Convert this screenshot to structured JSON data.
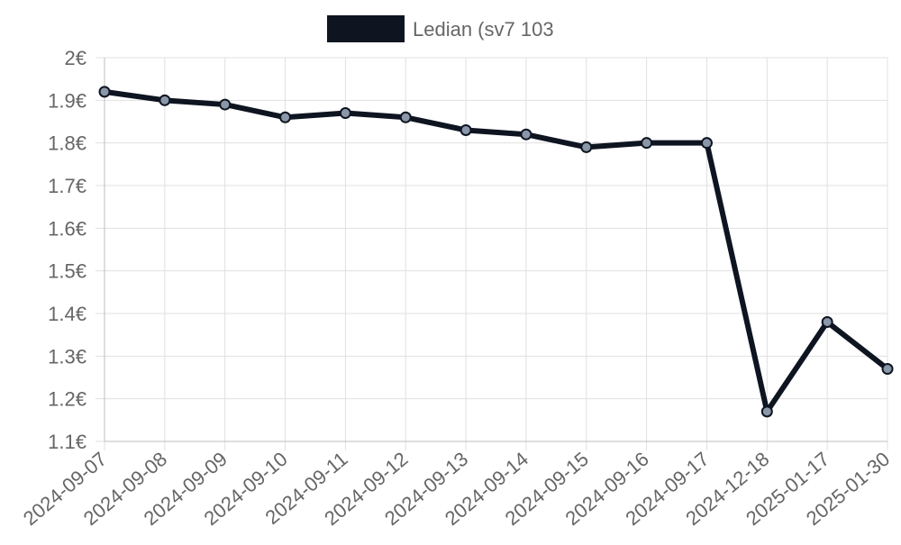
{
  "colors": {
    "series_line": "#0e1521",
    "point_fill": "#8a97a8",
    "legend_swatch": "#0e1521",
    "text": "#666666"
  },
  "chart_data": {
    "type": "line",
    "title": "",
    "xlabel": "",
    "ylabel": "",
    "categories": [
      "2024-09-07",
      "2024-09-08",
      "2024-09-09",
      "2024-09-10",
      "2024-09-11",
      "2024-09-12",
      "2024-09-13",
      "2024-09-14",
      "2024-09-15",
      "2024-09-16",
      "2024-09-17",
      "2024-12-18",
      "2025-01-17",
      "2025-01-30"
    ],
    "series": [
      {
        "name": "Ledian (sv7 103",
        "values": [
          1.92,
          1.9,
          1.89,
          1.86,
          1.87,
          1.86,
          1.83,
          1.82,
          1.79,
          1.8,
          1.8,
          1.17,
          1.38,
          1.27
        ]
      }
    ],
    "ylim": [
      1.1,
      2.0
    ],
    "y_ticks": [
      "1.1€",
      "1.2€",
      "1.3€",
      "1.4€",
      "1.5€",
      "1.6€",
      "1.7€",
      "1.8€",
      "1.9€",
      "2€"
    ],
    "y_tick_values": [
      1.1,
      1.2,
      1.3,
      1.4,
      1.5,
      1.6,
      1.7,
      1.8,
      1.9,
      2.0
    ],
    "grid": true,
    "legend_position": "top-center"
  }
}
